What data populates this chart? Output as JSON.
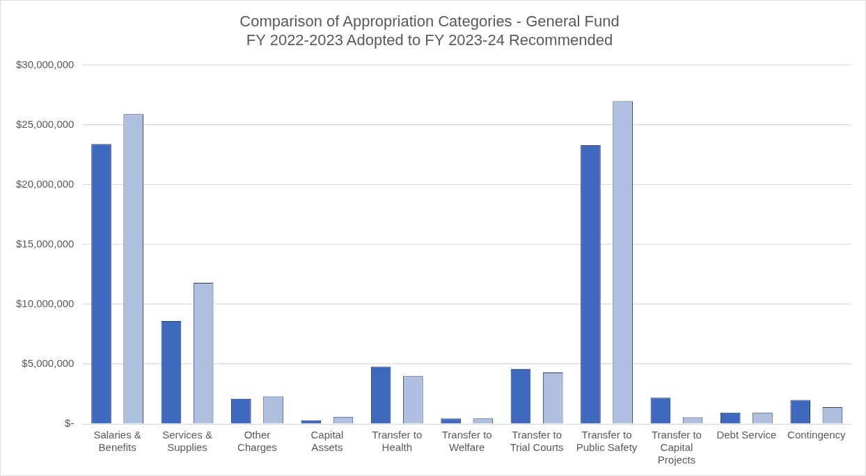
{
  "chart_data": {
    "type": "bar",
    "title": [
      "Comparison of Appropriation Categories - General Fund",
      "FY 2022-2023 Adopted to FY 2023-24 Recommended"
    ],
    "categories": [
      [
        "Salaries &",
        "Benefits"
      ],
      [
        "Services &",
        "Supplies"
      ],
      [
        "Other",
        "Charges"
      ],
      [
        "Capital",
        "Assets"
      ],
      [
        "Transfer to",
        "Health"
      ],
      [
        "Transfer to",
        "Welfare"
      ],
      [
        "Transfer to",
        "Trial Courts"
      ],
      [
        "Transfer to",
        "Public Safety"
      ],
      [
        "Transfer to",
        "Capital",
        "Projects"
      ],
      [
        "Debt Service"
      ],
      [
        "Contingency"
      ]
    ],
    "series": [
      {
        "color": "#3f68bf",
        "values": [
          23400000,
          8600000,
          2100000,
          300000,
          4800000,
          450000,
          4600000,
          23300000,
          2200000,
          950000,
          2000000
        ]
      },
      {
        "color": "#aebfe0",
        "values": [
          25900000,
          11800000,
          2300000,
          600000,
          4000000,
          450000,
          4300000,
          27000000,
          550000,
          950000,
          1400000
        ]
      }
    ],
    "ylim": [
      0,
      30000000
    ],
    "yticks": [
      {
        "value": 0,
        "label": "$-"
      },
      {
        "value": 5000000,
        "label": "$5,000,000"
      },
      {
        "value": 10000000,
        "label": "$10,000,000"
      },
      {
        "value": 15000000,
        "label": "$15,000,000"
      },
      {
        "value": 20000000,
        "label": "$20,000,000"
      },
      {
        "value": 25000000,
        "label": "$25,000,000"
      },
      {
        "value": 30000000,
        "label": "$30,000,000"
      }
    ],
    "grid": "y"
  }
}
